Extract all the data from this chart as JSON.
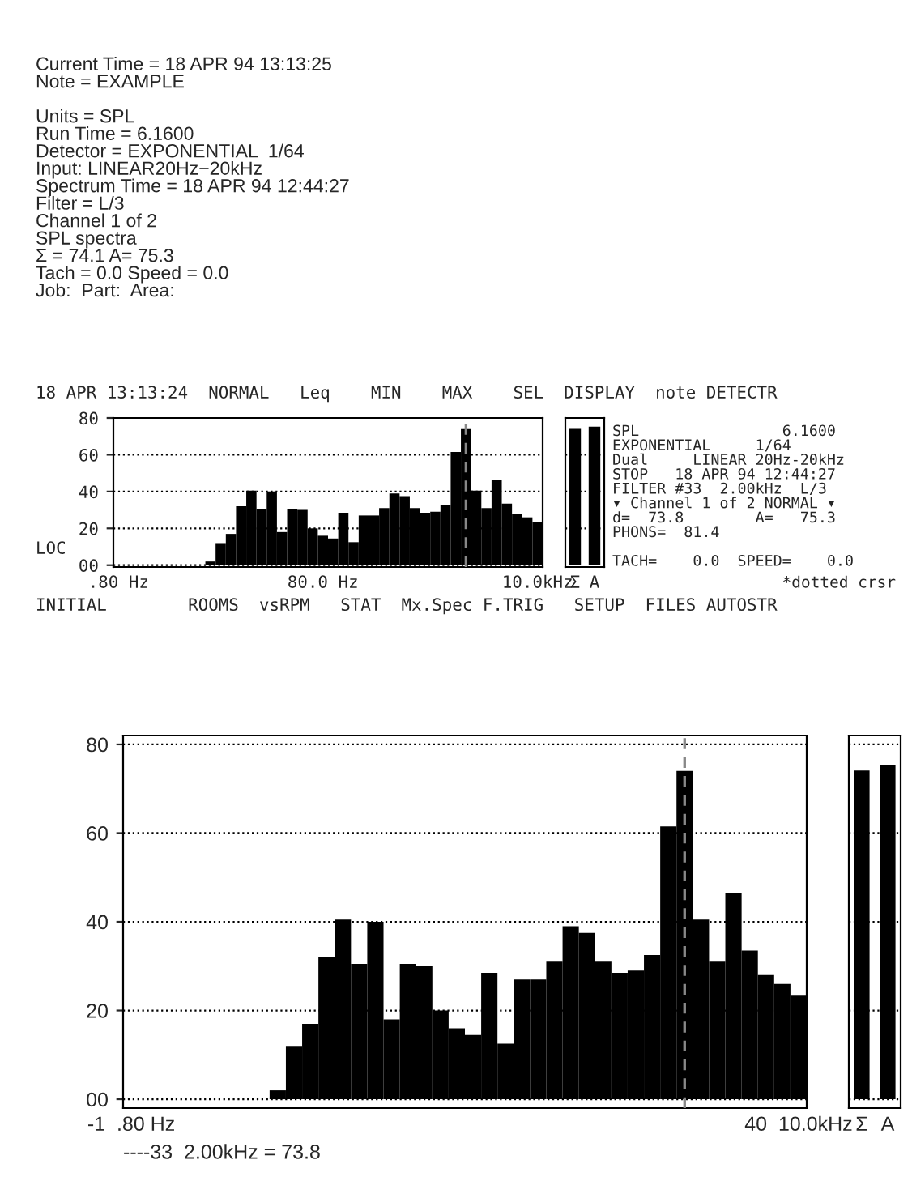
{
  "chart_data": [
    {
      "type": "bar",
      "categories": [
        ".80 Hz",
        null,
        null,
        null,
        null,
        null,
        null,
        null,
        null,
        null,
        null,
        null,
        null,
        null,
        null,
        null,
        null,
        null,
        null,
        null,
        "80.0 Hz",
        null,
        null,
        null,
        null,
        null,
        null,
        null,
        null,
        null,
        null,
        null,
        null,
        null,
        null,
        null,
        null,
        null,
        null,
        null,
        null,
        "10.0kHz"
      ],
      "values": [
        null,
        null,
        null,
        null,
        null,
        null,
        null,
        null,
        null,
        2,
        12,
        17,
        32,
        40.5,
        30.5,
        40,
        18,
        30.5,
        30,
        20,
        16,
        14.5,
        28.5,
        12.5,
        27,
        27,
        31,
        39,
        37.5,
        31,
        28.5,
        29,
        32.5,
        61.5,
        74,
        40.5,
        31,
        46.5,
        33.5,
        28,
        26,
        23.5
      ],
      "color": "#000000",
      "ylim": [
        -1,
        80
      ],
      "yticks": [
        {
          "value": 0,
          "label": "00"
        },
        20,
        40,
        60,
        80
      ],
      "grid": "y",
      "annotations": [
        "Current Time = 18 APR 94 13:13:25\nNote = EXAMPLE\n\nUnits = SPL\nRun Time = 6.1600\nDetector = EXPONENTIAL  1/64\nInput: LINEAR20Hz−20kHz\nSpectrum Time = 18 APR 94 12:44:27\nFilter = L/3\nChannel 1 of 2\nSPL spectra\nΣ = 74.1 A= 75.3\nTach = 0.0 Speed = 0.0\nJob:  Part:  Area:",
        "SPL                6.1600\nEXPONENTIAL     1/64\nDual     LINEAR 20Hz-20kHz\nSTOP   18 APR 94 12:44:27\nFILTER #33  2.00kHz  L/3\n▾ Channel 1 of 2 NORMAL ▾\nd=  73.8        A=   75.3\nPHONS=  81.4\n\nTACH=    0.0  SPEED=    0.0",
        "LOC",
        "*dotted crsr",
        "INITIAL        ROOMS  vsRPM   STAT  Mx.Spec F.TRIG   SETUP  FILES AUTOSTR",
        "18 APR 13:13:24  NORMAL   Leq    MIN    MAX    SEL  DISPLAY  note DETECTR"
      ]
    },
    {
      "type": "bar",
      "categories": [
        "Σ",
        "A"
      ],
      "values": [
        74.1,
        75.3
      ],
      "color": "#000000",
      "ylim": [
        -1,
        80
      ],
      "yticks": [
        {
          "value": 20,
          "label": null
        },
        {
          "value": 40,
          "label": null
        },
        {
          "value": 60,
          "label": null
        },
        {
          "value": 80,
          "label": null
        }
      ],
      "grid": "y",
      "tick_labels": "x"
    },
    {
      "type": "bar",
      "categories": [
        "-1  .80 Hz",
        null,
        null,
        null,
        null,
        null,
        null,
        null,
        null,
        null,
        null,
        null,
        null,
        null,
        null,
        null,
        null,
        null,
        null,
        null,
        null,
        null,
        null,
        null,
        null,
        null,
        null,
        null,
        null,
        null,
        null,
        null,
        null,
        null,
        null,
        null,
        null,
        null,
        null,
        null,
        null,
        "40  10.0kHz"
      ],
      "values": [
        null,
        null,
        null,
        null,
        null,
        null,
        null,
        null,
        null,
        2,
        12,
        17,
        32,
        40.5,
        30.5,
        40,
        18,
        30.5,
        30,
        20,
        16,
        14.5,
        28.5,
        12.5,
        27,
        27,
        31,
        39,
        37.5,
        31,
        28.5,
        29,
        32.5,
        61.5,
        74,
        40.5,
        31,
        46.5,
        33.5,
        28,
        26,
        23.5
      ],
      "color": "#000000",
      "ylim": [
        -2,
        82
      ],
      "yticks": [
        {
          "value": 0,
          "label": "00"
        },
        20,
        40,
        60,
        80
      ],
      "grid": "y",
      "annotations": [
        "----33  2.00kHz = 73.8"
      ]
    },
    {
      "type": "bar",
      "categories": [
        "Σ",
        "A"
      ],
      "values": [
        74.1,
        75.3
      ],
      "color": "#000000",
      "ylim": [
        -2,
        82
      ],
      "yticks": [
        {
          "value": 0,
          "label": null
        },
        {
          "value": 20,
          "label": null
        },
        {
          "value": 40,
          "label": null
        },
        {
          "value": 60,
          "label": null
        },
        {
          "value": 80,
          "label": null
        }
      ],
      "grid": "y",
      "tick_labels": "x"
    }
  ]
}
